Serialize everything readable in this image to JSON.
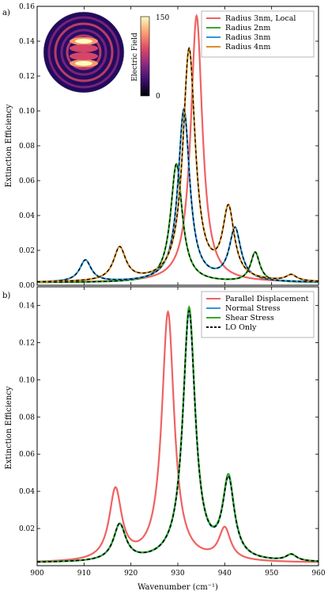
{
  "figure": {
    "panel_a_label": "a)",
    "panel_b_label": "b)",
    "xlabel": "Wavenumber (cm⁻¹)"
  },
  "chart_data": [
    {
      "type": "line",
      "panel": "a)",
      "xlim": [
        900,
        960
      ],
      "ylim": [
        0,
        0.16
      ],
      "xticks": [
        900,
        910,
        920,
        930,
        940,
        950,
        960
      ],
      "yticks": [
        0.0,
        0.02,
        0.04,
        0.06,
        0.08,
        0.1,
        0.12,
        0.14,
        0.16
      ],
      "ytick_labels": [
        "0.00",
        "0.02",
        "0.04",
        "0.06",
        "0.08",
        "0.10",
        "0.12",
        "0.14",
        "0.16"
      ],
      "ylabel": "Extinction Efficiency",
      "legend_position": "top-right",
      "series": [
        {
          "name": "Radius 3nm, Local",
          "color": "#ef6262",
          "dashed_overlay": false,
          "peaks": [
            {
              "x": 934.0,
              "amp": 0.153,
              "w": 1.5
            }
          ],
          "baseline": 0.0015
        },
        {
          "name": "Radius 2nm",
          "color": "#33aa2a",
          "dashed_overlay": true,
          "peaks": [
            {
              "x": 929.7,
              "amp": 0.068,
              "w": 1.5
            },
            {
              "x": 946.5,
              "amp": 0.017,
              "w": 1.2
            }
          ],
          "baseline": 0.0015
        },
        {
          "name": "Radius 3nm",
          "color": "#2f97d9",
          "dashed_overlay": true,
          "peaks": [
            {
              "x": 910.3,
              "amp": 0.0125,
              "w": 1.5
            },
            {
              "x": 931.3,
              "amp": 0.099,
              "w": 1.5
            },
            {
              "x": 942.2,
              "amp": 0.03,
              "w": 1.5
            }
          ],
          "baseline": 0.0015
        },
        {
          "name": "Radius 4nm",
          "color": "#d8902a",
          "dashed_overlay": true,
          "peaks": [
            {
              "x": 917.6,
              "amp": 0.019,
              "w": 1.6
            },
            {
              "x": 932.4,
              "amp": 0.133,
              "w": 1.6
            },
            {
              "x": 940.8,
              "amp": 0.04,
              "w": 1.5
            },
            {
              "x": 954.2,
              "amp": 0.0035,
              "w": 1.4
            }
          ],
          "baseline": 0.0015
        }
      ],
      "inset": {
        "colorbar_label": "Electric Field",
        "colorbar_ticks": [
          "150",
          "0"
        ],
        "colormap": [
          "#000004",
          "#3b0f70",
          "#8c2981",
          "#de4968",
          "#fe9f6d",
          "#fcfdbf"
        ]
      }
    },
    {
      "type": "line",
      "panel": "b)",
      "xlim": [
        900,
        960
      ],
      "ylim": [
        0,
        0.15
      ],
      "xticks": [
        900,
        910,
        920,
        930,
        940,
        950,
        960
      ],
      "yticks": [
        0.02,
        0.04,
        0.06,
        0.08,
        0.1,
        0.12,
        0.14
      ],
      "ytick_labels": [
        "0.02",
        "0.04",
        "0.06",
        "0.08",
        "0.10",
        "0.12",
        "0.14"
      ],
      "ylabel": "Extinction Efficiency",
      "legend_position": "top-right",
      "series": [
        {
          "name": "Parallel Displacement",
          "color": "#ef6262",
          "style": "solid",
          "peaks": [
            {
              "x": 916.7,
              "amp": 0.038,
              "w": 1.6
            },
            {
              "x": 927.9,
              "amp": 0.134,
              "w": 1.6
            },
            {
              "x": 940.0,
              "amp": 0.017,
              "w": 1.5
            }
          ],
          "baseline": 0.0015
        },
        {
          "name": "Normal Stress",
          "color": "#2f97d9",
          "style": "solid",
          "peaks": [
            {
              "x": 917.6,
              "amp": 0.0195,
              "w": 1.6
            },
            {
              "x": 932.4,
              "amp": 0.134,
              "w": 1.6
            },
            {
              "x": 940.8,
              "amp": 0.042,
              "w": 1.5
            },
            {
              "x": 954.2,
              "amp": 0.0035,
              "w": 1.4
            }
          ],
          "baseline": 0.0015
        },
        {
          "name": "Shear Stress",
          "color": "#33aa2a",
          "style": "solid",
          "peaks": [
            {
              "x": 917.6,
              "amp": 0.0195,
              "w": 1.6
            },
            {
              "x": 932.4,
              "amp": 0.136,
              "w": 1.6
            },
            {
              "x": 940.8,
              "amp": 0.043,
              "w": 1.5
            },
            {
              "x": 954.2,
              "amp": 0.0035,
              "w": 1.4
            }
          ],
          "baseline": 0.0015
        },
        {
          "name": "LO Only",
          "color": "#000000",
          "style": "dashed",
          "peaks": [
            {
              "x": 917.6,
              "amp": 0.0195,
              "w": 1.6
            },
            {
              "x": 932.4,
              "amp": 0.134,
              "w": 1.6
            },
            {
              "x": 940.8,
              "amp": 0.042,
              "w": 1.5
            },
            {
              "x": 954.2,
              "amp": 0.0035,
              "w": 1.4
            }
          ],
          "baseline": 0.0015
        }
      ]
    }
  ]
}
